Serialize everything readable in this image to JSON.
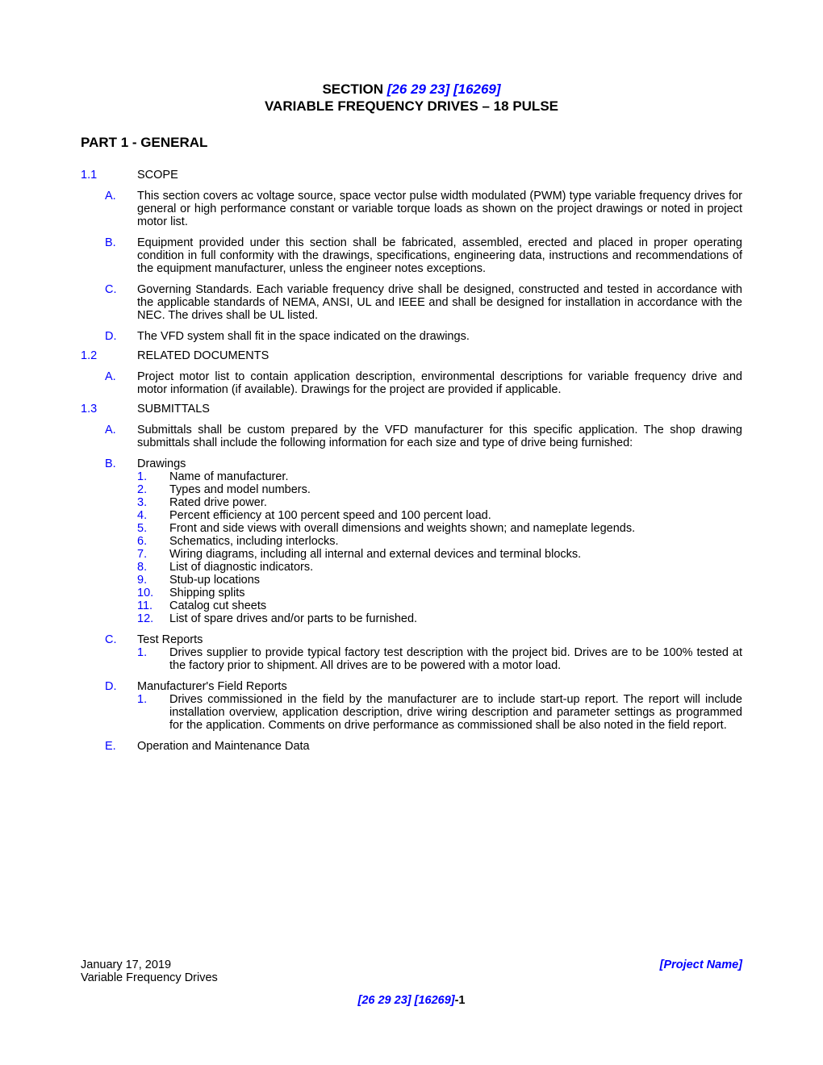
{
  "colors": {
    "link_blue": "#0000ff",
    "text": "#000000",
    "bg": "#ffffff"
  },
  "fonts": {
    "body_pt": 14.5,
    "heading_pt": 17,
    "family": "Arial"
  },
  "header": {
    "section_word": "SECTION",
    "section_code": "[26 29 23] [16269]",
    "title": "VARIABLE FREQUENCY DRIVES – 18 PULSE"
  },
  "part_title": "PART 1 - GENERAL",
  "s11": {
    "num": "1.1",
    "title": "SCOPE",
    "A": "This section covers ac voltage source, space vector pulse width modulated (PWM) type variable frequency drives for general or high performance constant or variable torque loads as shown on the project drawings or noted in project motor list.",
    "B": "Equipment provided under this section shall be fabricated, assembled, erected and placed in proper operating condition in full conformity with the drawings, specifications, engineering data, instructions and recommendations of the equipment manufacturer, unless the engineer notes exceptions.",
    "C": "Governing Standards.  Each variable frequency drive shall be designed, constructed and tested in accordance with the applicable standards of NEMA, ANSI, UL and IEEE and shall be designed for installation in accordance with the NEC.  The drives shall be UL listed.",
    "D": "The VFD system shall fit in the space indicated on the drawings."
  },
  "s12": {
    "num": "1.2",
    "title": "RELATED DOCUMENTS",
    "A": "Project motor list to contain application description, environmental descriptions for variable frequency drive and motor information (if available).  Drawings for the project are provided if applicable."
  },
  "s13": {
    "num": "1.3",
    "title": "SUBMITTALS",
    "A": "Submittals shall be custom prepared by the VFD manufacturer for this specific application.   The shop drawing submittals shall include the following information for each size and type of drive being furnished:",
    "B": "Drawings",
    "B_items": {
      "1": "Name of manufacturer.",
      "2": "Types and model numbers.",
      "3": "Rated drive power.",
      "4": "Percent efficiency at 100 percent speed and 100 percent load.",
      "5": "Front and side views with overall dimensions and weights shown; and nameplate legends.",
      "6": "Schematics, including interlocks.",
      "7": "Wiring diagrams, including all internal and external devices and terminal blocks.",
      "8": "List of diagnostic indicators.",
      "9": "Stub-up locations",
      "10": "Shipping splits",
      "11": "Catalog cut sheets",
      "12": "List of spare drives and/or parts to be furnished."
    },
    "C": "Test Reports",
    "C_items": {
      "1": "Drives supplier to provide typical factory test description with the project bid.  Drives are to be 100% tested at the factory prior to shipment.  All drives are to be powered with a motor load."
    },
    "D": "Manufacturer's Field Reports",
    "D_items": {
      "1": "Drives commissioned in the field by the manufacturer are to include start-up report.  The report will include installation overview, application description, drive wiring description and parameter settings as programmed for the application.  Comments on drive performance as commissioned shall be also noted in the field report."
    },
    "E": "Operation and Maintenance Data"
  },
  "footer": {
    "date": "January 17, 2019",
    "right": "[Project Name]",
    "line2": "Variable Frequency Drives",
    "code": "[26 29 23] [16269]",
    "suffix": "-1"
  },
  "labels": {
    "A": "A.",
    "B": "B.",
    "C": "C.",
    "D": "D.",
    "E": "E.",
    "n1": "1.",
    "n2": "2.",
    "n3": "3.",
    "n4": "4.",
    "n5": "5.",
    "n6": "6.",
    "n7": "7.",
    "n8": "8.",
    "n9": "9.",
    "n10": "10.",
    "n11": "11.",
    "n12": "12."
  }
}
